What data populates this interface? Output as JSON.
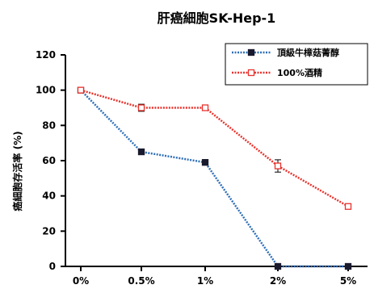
{
  "chart_data": {
    "type": "line",
    "title": "肝癌細胞SK-Hep-1",
    "xlabel": "",
    "ylabel": "癌細胞存活率 (%)",
    "categories": [
      "0%",
      "0.5%",
      "1%",
      "2%",
      "5%"
    ],
    "ylim": [
      0,
      120
    ],
    "yticks": [
      "0",
      "20",
      "40",
      "60",
      "80",
      "100",
      "120"
    ],
    "grid": false,
    "legend": "top-right",
    "series": [
      {
        "name": "頂級牛樟菇菁醇",
        "values": [
          100,
          65,
          59,
          0,
          0
        ],
        "errors": [
          1,
          1.5,
          1,
          0.5,
          0.5
        ],
        "color": "#2e6fb7",
        "marker": "filled-square"
      },
      {
        "name": "100%酒精",
        "values": [
          100,
          90,
          90,
          57,
          34
        ],
        "errors": [
          1,
          2,
          1.5,
          3.5,
          1
        ],
        "color": "#e8322c",
        "marker": "open-square"
      }
    ]
  }
}
